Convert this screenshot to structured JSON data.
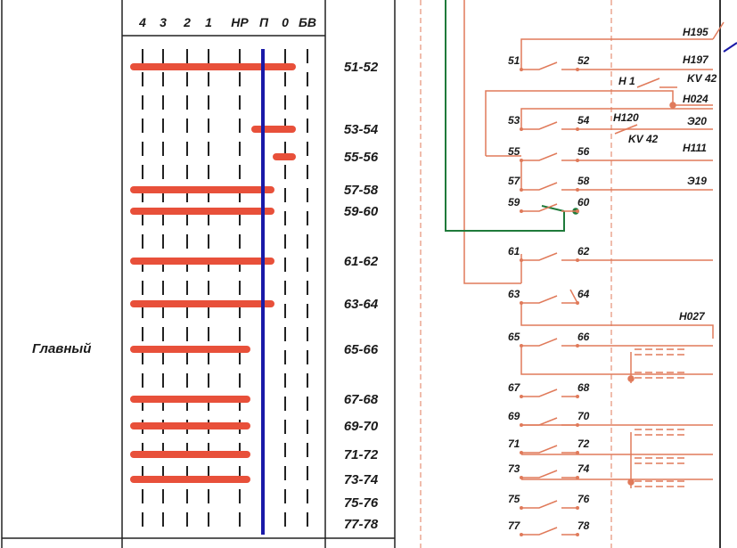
{
  "colors": {
    "bar": "#e8503a",
    "blue": "#1a1aa8",
    "green": "#1f7a3a",
    "wire": "#e07a5a",
    "frame": "#222222"
  },
  "table": {
    "section_label": "Главный",
    "positions": [
      "4",
      "3",
      "2",
      "1",
      "НР",
      "П",
      "0",
      "БВ"
    ],
    "contacts": [
      {
        "label": "51-52",
        "on": [
          "4",
          "3",
          "2",
          "1",
          "НР",
          "П",
          "0"
        ]
      },
      {
        "label": "53-54",
        "on": [
          "П",
          "0"
        ]
      },
      {
        "label": "55-56",
        "on": [
          "0"
        ]
      },
      {
        "label": "57-58",
        "on": [
          "4",
          "3",
          "2",
          "1",
          "НР",
          "П"
        ]
      },
      {
        "label": "59-60",
        "on": [
          "4",
          "3",
          "2",
          "1",
          "НР",
          "П"
        ]
      },
      {
        "label": "61-62",
        "on": [
          "4",
          "3",
          "2",
          "1",
          "НР",
          "П"
        ]
      },
      {
        "label": "63-64",
        "on": [
          "4",
          "3",
          "2",
          "1",
          "НР",
          "П"
        ]
      },
      {
        "label": "65-66",
        "on": [
          "4",
          "3",
          "2",
          "1",
          "НР"
        ]
      },
      {
        "label": "67-68",
        "on": [
          "4",
          "3",
          "2",
          "1",
          "НР"
        ]
      },
      {
        "label": "69-70",
        "on": [
          "4",
          "3",
          "2",
          "1",
          "НР"
        ]
      },
      {
        "label": "71-72",
        "on": [
          "4",
          "3",
          "2",
          "1",
          "НР"
        ]
      },
      {
        "label": "73-74",
        "on": [
          "4",
          "3",
          "2",
          "1",
          "НР"
        ]
      },
      {
        "label": "75-76",
        "on": []
      },
      {
        "label": "77-78",
        "on": []
      }
    ]
  },
  "schematic": {
    "wire_labels": [
      "Н195",
      "Н197",
      "KV 42",
      "Н 1",
      "Н024",
      "Н120",
      "Э20",
      "KV 42",
      "Н111",
      "Э19",
      "Н027"
    ],
    "terminals": [
      "51",
      "52",
      "53",
      "54",
      "55",
      "56",
      "57",
      "58",
      "59",
      "60",
      "61",
      "62",
      "63",
      "64",
      "65",
      "66",
      "67",
      "68",
      "69",
      "70",
      "71",
      "72",
      "73",
      "74",
      "75",
      "76",
      "77",
      "78"
    ]
  }
}
